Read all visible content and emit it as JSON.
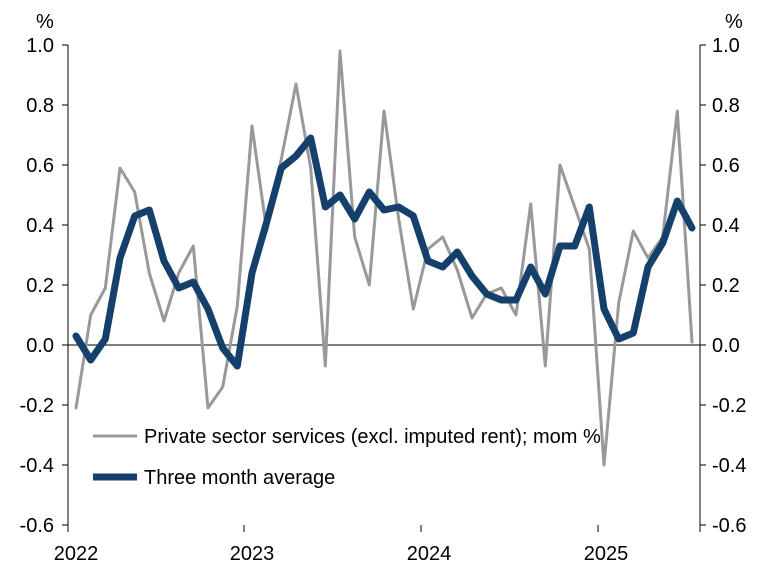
{
  "chart_data": {
    "type": "line",
    "left_unit": "%",
    "right_unit": "%",
    "ylim": [
      -0.6,
      1.0
    ],
    "y_ticks": [
      "1.0",
      "0.8",
      "0.6",
      "0.4",
      "0.2",
      "0.0",
      "-0.2",
      "-0.4",
      "-0.6"
    ],
    "y_tick_values": [
      1.0,
      0.8,
      0.6,
      0.4,
      0.2,
      0.0,
      -0.2,
      -0.4,
      -0.6
    ],
    "x_tick_labels": [
      "2022",
      "2023",
      "2024",
      "2025"
    ],
    "x_start": "2022-01",
    "x_end": "2025-07",
    "grid": false,
    "legend_position": "lower-left",
    "series": [
      {
        "name": "Private sector services (excl. imputed rent); mom %",
        "color": "#999999",
        "values": [
          -0.21,
          0.1,
          0.19,
          0.59,
          0.51,
          0.24,
          0.08,
          0.24,
          0.33,
          -0.21,
          -0.14,
          0.13,
          0.73,
          0.38,
          0.62,
          0.87,
          0.59,
          -0.07,
          0.98,
          0.36,
          0.2,
          0.78,
          0.42,
          0.12,
          0.32,
          0.36,
          0.25,
          0.09,
          0.17,
          0.19,
          0.1,
          0.47,
          -0.07,
          0.6,
          0.46,
          0.32,
          -0.4,
          0.14,
          0.38,
          0.29,
          0.36,
          0.78,
          0.01
        ]
      },
      {
        "name": "Three month average",
        "color": "#15406b",
        "values": [
          0.03,
          -0.05,
          0.02,
          0.29,
          0.43,
          0.45,
          0.28,
          0.19,
          0.21,
          0.12,
          -0.01,
          -0.07,
          0.24,
          0.41,
          0.59,
          0.63,
          0.69,
          0.46,
          0.5,
          0.42,
          0.51,
          0.45,
          0.46,
          0.43,
          0.28,
          0.26,
          0.31,
          0.23,
          0.17,
          0.15,
          0.15,
          0.26,
          0.17,
          0.33,
          0.33,
          0.46,
          0.12,
          0.02,
          0.04,
          0.26,
          0.34,
          0.48,
          0.39
        ]
      }
    ]
  }
}
